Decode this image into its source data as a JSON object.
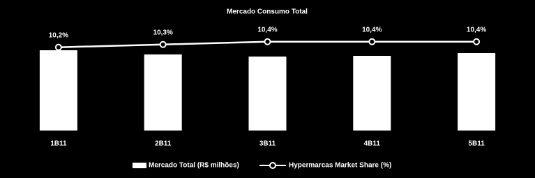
{
  "chart_data": {
    "type": "bar-line",
    "title": "Mercado Consumo Total",
    "categories": [
      "1B11",
      "2B11",
      "3B11",
      "4B11",
      "5B11"
    ],
    "ylim": [
      0,
      115
    ],
    "y2lim": [
      7.2,
      11.4
    ],
    "series": [
      {
        "name": "Mercado Total (R$ milhões)",
        "type": "bar",
        "color": "#ffffff",
        "values": [
          115,
          109,
          106,
          107,
          111
        ]
      },
      {
        "name": "Hypermarcas Market Share (%)",
        "type": "line",
        "axis": "y2",
        "color": "#ffffff",
        "values": [
          10.2,
          10.3,
          10.4,
          10.4,
          10.4
        ],
        "value_labels": [
          "10,2%",
          "10,3%",
          "10,4%",
          "10,4%",
          "10,4%"
        ]
      }
    ]
  }
}
